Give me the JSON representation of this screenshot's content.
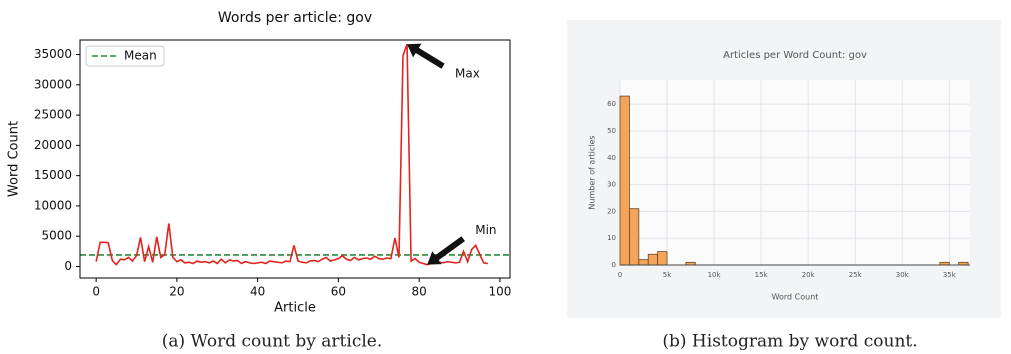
{
  "chart_data": [
    {
      "type": "line",
      "title": "Words per article: gov",
      "x_label": "Article",
      "y_label": "Word Count",
      "x": [
        0,
        1,
        2,
        3,
        4,
        5,
        6,
        7,
        8,
        9,
        10,
        11,
        12,
        13,
        14,
        15,
        16,
        17,
        18,
        19,
        20,
        21,
        22,
        23,
        24,
        25,
        26,
        27,
        28,
        29,
        30,
        31,
        32,
        33,
        34,
        35,
        36,
        37,
        38,
        39,
        40,
        41,
        42,
        43,
        44,
        45,
        46,
        47,
        48,
        49,
        50,
        51,
        52,
        53,
        54,
        55,
        56,
        57,
        58,
        59,
        60,
        61,
        62,
        63,
        64,
        65,
        66,
        67,
        68,
        69,
        70,
        71,
        72,
        73,
        74,
        75,
        76,
        77,
        78,
        79,
        80,
        81,
        82,
        83,
        84,
        85,
        86,
        87,
        88,
        89,
        90,
        91,
        92,
        93,
        94,
        95,
        96,
        97
      ],
      "series": [
        {
          "color": "#e3241c",
          "values": [
            800,
            4000,
            4000,
            3900,
            1000,
            300,
            1200,
            1100,
            1500,
            900,
            1800,
            4800,
            800,
            3300,
            700,
            4900,
            1500,
            2000,
            7100,
            1500,
            800,
            1100,
            600,
            700,
            500,
            900,
            700,
            800,
            600,
            900,
            500,
            1200,
            600,
            1100,
            900,
            1000,
            500,
            800,
            600,
            500,
            600,
            700,
            500,
            900,
            800,
            700,
            600,
            900,
            800,
            3500,
            900,
            700,
            600,
            900,
            1000,
            800,
            1200,
            1500,
            900,
            1100,
            1300,
            1800,
            1200,
            1000,
            1500,
            1100,
            1300,
            1400,
            1200,
            1700,
            1300,
            1200,
            1400,
            1300,
            4700,
            1500,
            34800,
            36700,
            900,
            1300,
            700,
            500,
            300,
            500,
            900,
            700,
            600,
            800,
            700,
            600,
            700,
            2500,
            800,
            2800,
            3500,
            2000,
            600,
            500
          ]
        }
      ],
      "reference_lines": [
        {
          "name": "Mean",
          "value": 1900,
          "color": "#2a8a3a",
          "dash": true
        }
      ],
      "annotations": [
        {
          "text": "Max",
          "x": 77,
          "y": 36700
        },
        {
          "text": "Min",
          "x": 82,
          "y": 300
        }
      ],
      "legend": "upper left",
      "xlim": [
        -4,
        102.5
      ],
      "xticks": [
        0,
        20,
        40,
        60,
        80,
        100
      ],
      "ylim": [
        -1900,
        37400
      ],
      "yticks": [
        0,
        5000,
        10000,
        15000,
        20000,
        25000,
        30000,
        35000
      ]
    },
    {
      "type": "histogram",
      "title": "Articles per Word Count: gov",
      "x_label": "Word Count",
      "y_label": "Number of articles",
      "bins": [
        0,
        1000,
        2000,
        3000,
        4000,
        5000,
        6000,
        7000,
        8000,
        9000,
        10000,
        11000,
        12000,
        13000,
        14000,
        15000,
        16000,
        17000,
        18000,
        19000,
        20000,
        21000,
        22000,
        23000,
        24000,
        25000,
        26000,
        27000,
        28000,
        29000,
        30000,
        31000,
        32000,
        33000,
        34000,
        35000,
        36000,
        37000
      ],
      "counts": [
        63,
        21,
        2,
        4,
        5,
        0,
        0,
        1,
        0,
        0,
        0,
        0,
        0,
        0,
        0,
        0,
        0,
        0,
        0,
        0,
        0,
        0,
        0,
        0,
        0,
        0,
        0,
        0,
        0,
        0,
        0,
        0,
        0,
        0,
        1,
        0,
        1
      ],
      "color": "#f5a45c",
      "grid": true,
      "xlim": [
        0,
        37200
      ],
      "xticks": [
        0,
        {
          "value": 5000,
          "label": "5k"
        },
        {
          "value": 10000,
          "label": "10k"
        },
        {
          "value": 15000,
          "label": "15k"
        },
        {
          "value": 20000,
          "label": "20k"
        },
        {
          "value": 25000,
          "label": "25k"
        },
        {
          "value": 30000,
          "label": "30k"
        },
        {
          "value": 35000,
          "label": "35k"
        }
      ],
      "ylim": [
        0,
        69
      ],
      "yticks": [
        0,
        10,
        20,
        30,
        40,
        50,
        60
      ]
    }
  ],
  "captions": [
    "(a) Word count by article.",
    "(b) Histogram by word count."
  ]
}
